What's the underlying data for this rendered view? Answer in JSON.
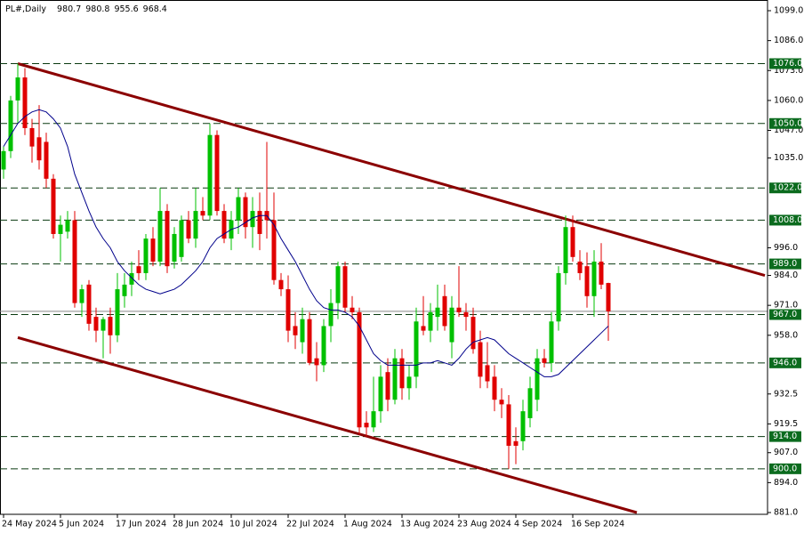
{
  "chart_data": {
    "type": "candlestick",
    "title": "PL#,Daily",
    "categories": [
      "24 May 2024",
      null,
      null,
      null,
      null,
      null,
      null,
      null,
      "5 Jun 2024",
      null,
      null,
      null,
      null,
      null,
      null,
      null,
      "17 Jun 2024",
      null,
      null,
      null,
      null,
      null,
      null,
      null,
      "28 Jun 2024",
      null,
      null,
      null,
      null,
      null,
      null,
      null,
      "10 Jul 2024",
      null,
      null,
      null,
      null,
      null,
      null,
      null,
      "22 Jul 2024",
      null,
      null,
      null,
      null,
      null,
      null,
      null,
      "1 Aug 2024",
      null,
      null,
      null,
      null,
      null,
      null,
      null,
      "13 Aug 2024",
      null,
      null,
      null,
      null,
      null,
      null,
      null,
      "23 Aug 2024",
      null,
      null,
      null,
      null,
      null,
      null,
      null,
      "4 Sep 2024",
      null,
      null,
      null,
      null,
      null,
      null,
      null,
      "16 Sep 2024",
      null,
      null,
      null,
      null,
      null
    ],
    "open": [
      1030,
      1038,
      1060,
      1070,
      1048,
      1044,
      1042,
      1026,
      1002,
      1003,
      1008,
      972,
      980,
      966,
      960,
      966,
      958,
      975,
      980,
      988,
      985,
      1000,
      990,
      1012,
      990,
      992,
      1008,
      1000,
      1012,
      1010,
      1045,
      1012,
      1000,
      1008,
      1018,
      1005,
      1012,
      1012,
      1008,
      982,
      978,
      962,
      955,
      965,
      948,
      945,
      962,
      972,
      988,
      970,
      968,
      920,
      918,
      925,
      942,
      930,
      948,
      935,
      940,
      962,
      960,
      966,
      975,
      955,
      970,
      968,
      966,
      955,
      945,
      940,
      930,
      928,
      912,
      912,
      922,
      930,
      948,
      946,
      964,
      985,
      1005,
      990,
      988,
      975,
      990,
      980.7
    ],
    "high": [
      1040,
      1062,
      1076,
      1074,
      1052,
      1058,
      1046,
      1028,
      1010,
      1012,
      1012,
      980,
      982,
      970,
      966,
      970,
      985,
      985,
      990,
      995,
      1002,
      1005,
      1022,
      1015,
      1005,
      1010,
      1012,
      1022,
      1018,
      1050,
      1047,
      1015,
      1012,
      1022,
      1020,
      1018,
      1020,
      1042,
      1020,
      985,
      984,
      968,
      970,
      968,
      955,
      965,
      978,
      990,
      990,
      975,
      970,
      925,
      940,
      945,
      948,
      952,
      952,
      945,
      970,
      975,
      972,
      980,
      980,
      975,
      988,
      972,
      970,
      960,
      955,
      945,
      935,
      932,
      918,
      930,
      940,
      952,
      952,
      968,
      988,
      1010,
      1010,
      995,
      994,
      995,
      998,
      980.8
    ],
    "low": [
      1026,
      1035,
      1050,
      1045,
      1033,
      1030,
      1022,
      1000,
      990,
      1000,
      970,
      966,
      960,
      955,
      948,
      950,
      955,
      970,
      975,
      982,
      982,
      988,
      988,
      985,
      987,
      990,
      998,
      996,
      1008,
      1008,
      1010,
      998,
      995,
      1002,
      1000,
      996,
      995,
      1000,
      980,
      975,
      955,
      952,
      950,
      945,
      938,
      942,
      955,
      965,
      968,
      965,
      915,
      914,
      916,
      920,
      925,
      928,
      930,
      930,
      935,
      958,
      955,
      960,
      960,
      948,
      966,
      960,
      950,
      935,
      935,
      925,
      922,
      900,
      902,
      908,
      918,
      925,
      944,
      942,
      960,
      980,
      990,
      982,
      970,
      966,
      978,
      955.6
    ],
    "close": [
      1038,
      1060,
      1070,
      1048,
      1040,
      1034,
      1026,
      1002,
      1006,
      1008,
      972,
      978,
      963,
      960,
      965,
      958,
      978,
      980,
      985,
      985,
      1000,
      990,
      1012,
      988,
      1002,
      1008,
      1000,
      1012,
      1010,
      1045,
      1012,
      1000,
      1008,
      1018,
      1005,
      1012,
      1002,
      1008,
      982,
      978,
      960,
      958,
      965,
      946,
      945,
      962,
      972,
      988,
      970,
      968,
      918,
      918,
      925,
      940,
      930,
      948,
      935,
      940,
      964,
      960,
      968,
      970,
      962,
      970,
      968,
      966,
      952,
      940,
      938,
      930,
      928,
      910,
      910,
      925,
      935,
      948,
      946,
      964,
      985,
      1005,
      992,
      985,
      975,
      990,
      980,
      968.4
    ],
    "up_color": "#00c000",
    "down_color": "#e00000",
    "moving_average": {
      "color": "#00008b",
      "values": [
        1040,
        1045,
        1050,
        1053,
        1055,
        1056,
        1055,
        1052,
        1048,
        1040,
        1028,
        1020,
        1012,
        1005,
        1000,
        996,
        990,
        986,
        983,
        980,
        978,
        977,
        976,
        977,
        978,
        980,
        983,
        986,
        990,
        996,
        1000,
        1002,
        1004,
        1005,
        1007,
        1009,
        1010,
        1010,
        1006,
        1000,
        995,
        990,
        984,
        978,
        973,
        970,
        969,
        969,
        968,
        966,
        962,
        956,
        950,
        947,
        945,
        945,
        945,
        945,
        945,
        946,
        946,
        947,
        946,
        945,
        948,
        952,
        955,
        956,
        957,
        956,
        953,
        950,
        948,
        946,
        944,
        942,
        940,
        940,
        941,
        944,
        947,
        950,
        953,
        956,
        959,
        962
      ]
    },
    "trendlines": [
      {
        "color": "#8b0000",
        "x": [
          2,
          107
        ],
        "y": [
          1076,
          984
        ]
      },
      {
        "color": "#8b0000",
        "x": [
          2,
          89
        ],
        "y": [
          957,
          881
        ]
      }
    ],
    "levels": [
      {
        "value": 1076,
        "label": "1076.0"
      },
      {
        "value": 1050,
        "label": "1050.0"
      },
      {
        "value": 1022,
        "label": "1022.0"
      },
      {
        "value": 1008,
        "label": "1008.0"
      },
      {
        "value": 989,
        "label": "989.0"
      },
      {
        "value": 967,
        "label": "967.0"
      },
      {
        "value": 946,
        "label": "946.0"
      },
      {
        "value": 914,
        "label": "914.0"
      },
      {
        "value": 900,
        "label": "900.0"
      }
    ],
    "level_color": "#0b6b1e",
    "ylim": [
      881,
      1099
    ],
    "yticks": [
      {
        "value": 1099,
        "label": "1099.0"
      },
      {
        "value": 1086,
        "label": "1086.0"
      },
      {
        "value": 1073,
        "label": "1073.0"
      },
      {
        "value": 1060,
        "label": "1060.0"
      },
      {
        "value": 1047,
        "label": "1047.0"
      },
      {
        "value": 1035,
        "label": "1035.0"
      },
      {
        "value": 996,
        "label": "996.0"
      },
      {
        "value": 984,
        "label": "984.0"
      },
      {
        "value": 971,
        "label": "971.0"
      },
      {
        "value": 958,
        "label": "958.0"
      },
      {
        "value": 932.5,
        "label": "932.5"
      },
      {
        "value": 919.5,
        "label": "919.5"
      },
      {
        "value": 907,
        "label": "907.0"
      },
      {
        "value": 894,
        "label": "894.0"
      },
      {
        "value": 881,
        "label": "881.0"
      }
    ]
  }
}
